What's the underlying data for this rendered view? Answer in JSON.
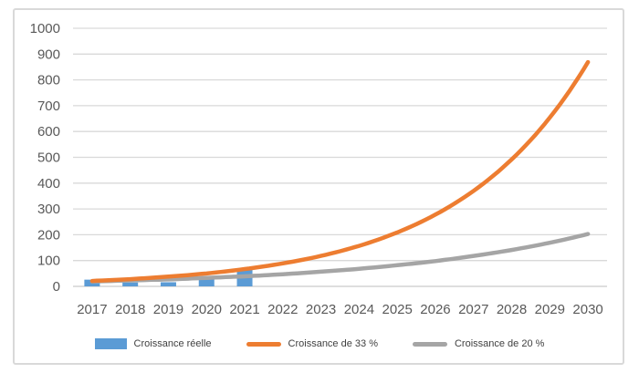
{
  "chart": {
    "frame_border_color": "#D9D9D9",
    "gridline_color": "#D9D9D9",
    "axis_line_color": "#C9C9C9",
    "tick_label_color": "#595959",
    "background": "#ffffff"
  },
  "chart_data": {
    "type": "combo",
    "title": "",
    "xlabel": "",
    "ylabel": "",
    "categories": [
      "2017",
      "2018",
      "2019",
      "2020",
      "2021",
      "2022",
      "2023",
      "2024",
      "2025",
      "2026",
      "2027",
      "2028",
      "2029",
      "2030"
    ],
    "series": [
      {
        "name": "Croissance réelle",
        "kind": "bar",
        "color": "#5B9BD5",
        "values": [
          26,
          15,
          16,
          34,
          68,
          null,
          null,
          null,
          null,
          null,
          null,
          null,
          null,
          null
        ]
      },
      {
        "name": "Croissance de 33 %",
        "kind": "line",
        "color": "#ED7D31",
        "values": [
          21,
          28,
          38,
          50,
          67,
          89,
          118,
          157,
          209,
          278,
          370,
          492,
          654,
          869
        ]
      },
      {
        "name": "Croissance de 20 %",
        "kind": "line",
        "color": "#A5A5A5",
        "values": [
          19,
          23,
          27,
          33,
          39,
          47,
          57,
          68,
          82,
          98,
          118,
          141,
          169,
          203
        ]
      }
    ],
    "ylim": [
      0,
      1000
    ],
    "ytick_step": 100,
    "ytick_labels": [
      "0",
      "100",
      "200",
      "300",
      "400",
      "500",
      "600",
      "700",
      "800",
      "900",
      "1000"
    ],
    "grid": "horizontal-only",
    "legend_position": "bottom"
  }
}
